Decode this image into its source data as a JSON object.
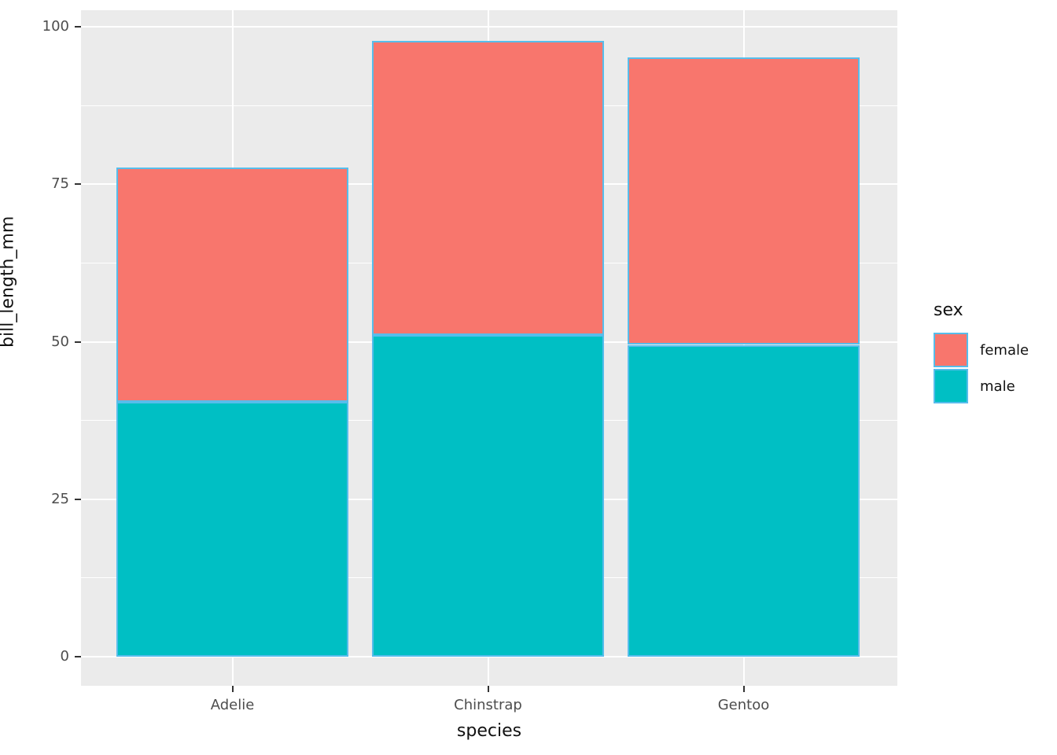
{
  "chart_data": {
    "type": "bar",
    "stacked": true,
    "xlabel": "species",
    "ylabel": "bill_length_mm",
    "categories": [
      "Adelie",
      "Chinstrap",
      "Gentoo"
    ],
    "series": [
      {
        "name": "male",
        "color": "#00BFC4",
        "values": [
          40.4,
          51.1,
          49.5
        ]
      },
      {
        "name": "female",
        "color": "#F8766D",
        "values": [
          37.3,
          46.6,
          45.6
        ]
      }
    ],
    "stack_order_bottom_to_top": [
      "male",
      "female"
    ],
    "totals": [
      77.7,
      97.7,
      95.1
    ],
    "ylim": [
      0,
      100
    ],
    "yticks": [
      0,
      25,
      50,
      75,
      100
    ],
    "ytick_labels": [
      "0",
      "25",
      "50",
      "75",
      "100"
    ],
    "yticks_minor": [
      12.5,
      37.5,
      62.5,
      87.5
    ],
    "grid": "white major+minor horizontal lines, white major vertical lines, drawn behind bars",
    "style": {
      "panel_bg": "#EBEBEB",
      "gridline_color": "#FFFFFF",
      "bar_outline_color": "#57BDEB",
      "tick_mark_color": "#333333",
      "tick_label_color": "#4D4D4D",
      "axis_title_color": "#111111"
    },
    "legend": {
      "title": "sex",
      "position": "right",
      "entries": [
        {
          "label": "female",
          "color": "#F8766D"
        },
        {
          "label": "male",
          "color": "#00BFC4"
        }
      ]
    }
  }
}
